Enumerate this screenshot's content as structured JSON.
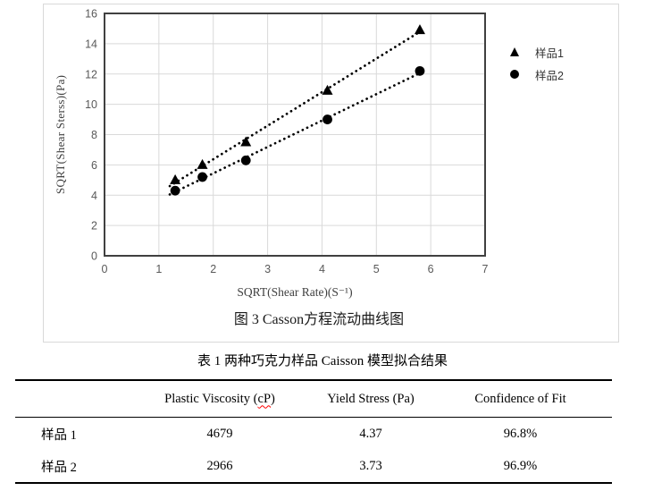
{
  "figure": {
    "caption": "图 3 Casson方程流动曲线图"
  },
  "chart_data": {
    "type": "scatter",
    "title": "",
    "xlabel": "SQRT(Shear Rate)(S⁻¹)",
    "ylabel": "SQRT(Shear Sterss)(Pa)",
    "xlim": [
      0,
      7
    ],
    "ylim": [
      0,
      16
    ],
    "xticks": [
      0,
      1,
      2,
      3,
      4,
      5,
      6,
      7
    ],
    "yticks": [
      0,
      2,
      4,
      6,
      8,
      10,
      12,
      14,
      16
    ],
    "grid": true,
    "legend_position": "right",
    "series": [
      {
        "name": "样品1",
        "marker": "triangle",
        "color": "#000000",
        "trendline_style": "dotted",
        "points": [
          [
            1.3,
            5.0
          ],
          [
            1.8,
            6.0
          ],
          [
            2.6,
            7.5
          ],
          [
            4.1,
            10.9
          ],
          [
            5.8,
            14.9
          ]
        ],
        "trend": [
          [
            1.2,
            4.6
          ],
          [
            5.85,
            14.9
          ]
        ]
      },
      {
        "name": "样品2",
        "marker": "circle",
        "color": "#000000",
        "trendline_style": "dotted",
        "points": [
          [
            1.3,
            4.3
          ],
          [
            1.8,
            5.2
          ],
          [
            2.6,
            6.3
          ],
          [
            4.1,
            9.0
          ],
          [
            5.8,
            12.2
          ]
        ],
        "trend": [
          [
            1.2,
            4.05
          ],
          [
            5.85,
            12.15
          ]
        ]
      }
    ]
  },
  "table": {
    "title": "表 1 两种巧克力样品 Caisson 模型拟合结果",
    "header": {
      "col1_prefix": "Plastic Viscosity (",
      "col1_misspelled": "cP",
      "col1_suffix": ")",
      "col2": "Yield Stress (Pa)",
      "col3": "Confidence of Fit"
    },
    "rows": [
      [
        "样品 1",
        "4679",
        "4.37",
        "96.8%"
      ],
      [
        "样品 2",
        "2966",
        "3.73",
        "96.9%"
      ]
    ]
  },
  "colors": {
    "grid": "#d9d9d9",
    "axis": "#404040",
    "tick_text": "#595959",
    "marker": "#000000",
    "figure_border": "#d9d9d9",
    "table_rule": "#000000",
    "spellcheck_underline": "#ff0000"
  }
}
